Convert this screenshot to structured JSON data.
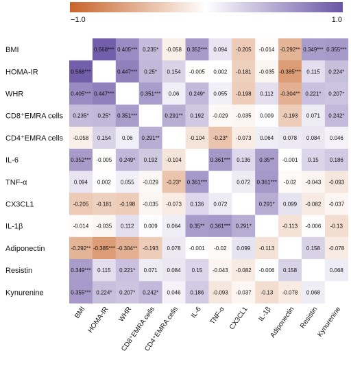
{
  "chart_data": {
    "type": "heatmap",
    "variables": [
      "BMI",
      "HOMA-IR",
      "WHR",
      "CD8⁺EMRA cells",
      "CD4⁺EMRA cells",
      "IL-6",
      "TNF-α",
      "CX3CL1",
      "IL-1β",
      "Adiponectin",
      "Resistin",
      "Kynurenine"
    ],
    "column_labels": [
      "BMI",
      "HOMA-IR",
      "WHR",
      "CD8⁺EMRA cells",
      "CD4⁺EMRA cells",
      "IL-6",
      "TNF-α",
      "CX3CL1",
      "IL-1β",
      "Adiponectin",
      "Resistin",
      "Kynurenine"
    ],
    "values": [
      [
        null,
        0.568,
        0.405,
        0.235,
        -0.058,
        0.352,
        0.094,
        -0.205,
        -0.014,
        -0.292,
        0.349,
        0.355
      ],
      [
        0.568,
        null,
        0.447,
        0.25,
        0.154,
        -0.005,
        0.002,
        -0.181,
        -0.035,
        -0.385,
        0.115,
        0.224
      ],
      [
        0.405,
        0.447,
        null,
        0.351,
        0.06,
        0.249,
        0.055,
        -0.198,
        0.112,
        -0.304,
        0.221,
        0.207
      ],
      [
        0.235,
        0.25,
        0.351,
        null,
        0.291,
        0.192,
        -0.029,
        -0.035,
        0.009,
        -0.193,
        0.071,
        0.242
      ],
      [
        -0.058,
        0.154,
        0.06,
        0.291,
        null,
        -0.104,
        -0.23,
        -0.073,
        0.064,
        0.078,
        0.084,
        0.046
      ],
      [
        0.352,
        -0.005,
        0.249,
        0.192,
        -0.104,
        null,
        0.361,
        0.136,
        0.35,
        -0.001,
        0.15,
        0.186
      ],
      [
        0.094,
        0.002,
        0.055,
        -0.029,
        -0.23,
        0.361,
        null,
        0.072,
        0.361,
        -0.02,
        -0.043,
        -0.093
      ],
      [
        -0.205,
        -0.181,
        -0.198,
        -0.035,
        -0.073,
        0.136,
        0.072,
        null,
        0.291,
        0.099,
        -0.082,
        -0.037
      ],
      [
        -0.014,
        -0.035,
        0.112,
        0.009,
        0.064,
        0.35,
        0.361,
        0.291,
        null,
        -0.113,
        -0.006,
        -0.13
      ],
      [
        -0.292,
        -0.385,
        -0.304,
        -0.193,
        0.078,
        -0.001,
        -0.02,
        0.099,
        -0.113,
        null,
        0.158,
        -0.078
      ],
      [
        0.349,
        0.115,
        0.221,
        0.071,
        0.084,
        0.15,
        -0.043,
        -0.082,
        -0.006,
        0.158,
        null,
        0.068
      ],
      [
        0.355,
        0.224,
        0.207,
        0.242,
        0.046,
        0.186,
        -0.093,
        -0.037,
        -0.13,
        -0.078,
        0.068,
        null
      ]
    ],
    "labels": [
      [
        "",
        "0.568***",
        "0.405***",
        "0.235*",
        "-0.058",
        "0.352***",
        "0.094",
        "-0.205",
        "-0.014",
        "-0.292**",
        "0.349***",
        "0.355***"
      ],
      [
        "0.568***",
        "",
        "0.447***",
        "0.25*",
        "0.154",
        "-0.005",
        "0.002",
        "-0.181",
        "-0.035",
        "-0.385***",
        "0.115",
        "0.224*"
      ],
      [
        "0.405***",
        "0.447***",
        "",
        "0.351***",
        "0.06",
        "0.249*",
        "0.055",
        "-0.198",
        "0.112",
        "-0.304**",
        "0.221*",
        "0.207*"
      ],
      [
        "0.235*",
        "0.25*",
        "0.351***",
        "",
        "0.291**",
        "0.192",
        "-0.029",
        "-0.035",
        "0.009",
        "-0.193",
        "0.071",
        "0.242*"
      ],
      [
        "-0.058",
        "0.154",
        "0.06",
        "0.291**",
        "",
        "-0.104",
        "-0.23*",
        "-0.073",
        "0.064",
        "0.078",
        "0.084",
        "0.046"
      ],
      [
        "0.352***",
        "-0.005",
        "0.249*",
        "0.192",
        "-0.104",
        "",
        "0.361***",
        "0.136",
        "0.35**",
        "-0.001",
        "0.15",
        "0.186"
      ],
      [
        "0.094",
        "0.002",
        "0.055",
        "-0.029",
        "-0.23*",
        "0.361***",
        "",
        "0.072",
        "0.361***",
        "-0.02",
        "-0.043",
        "-0.093"
      ],
      [
        "-0.205",
        "-0.181",
        "-0.198",
        "-0.035",
        "-0.073",
        "0.136",
        "0.072",
        "",
        "0.291*",
        "0.099",
        "-0.082",
        "-0.037"
      ],
      [
        "-0.014",
        "-0.035",
        "0.112",
        "0.009",
        "0.064",
        "0.35**",
        "0.361***",
        "0.291*",
        "",
        "-0.113",
        "-0.006",
        "-0.13"
      ],
      [
        "-0.292**",
        "-0.385***",
        "-0.304**",
        "-0.193",
        "0.078",
        "-0.001",
        "-0.02",
        "0.099",
        "-0.113",
        "",
        "0.158",
        "-0.078"
      ],
      [
        "0.349***",
        "0.115",
        "0.221*",
        "0.071",
        "0.084",
        "0.15",
        "-0.043",
        "-0.082",
        "-0.006",
        "0.158",
        "",
        "0.068"
      ],
      [
        "0.355***",
        "0.224*",
        "0.207*",
        "0.242*",
        "0.046",
        "0.186",
        "-0.093",
        "-0.037",
        "-0.13",
        "-0.078",
        "0.068",
        ""
      ]
    ],
    "colorbar": {
      "min": -1.0,
      "max": 1.0,
      "min_label": "−1.0",
      "max_label": "1.0"
    },
    "colors": {
      "negative": "#c8642a",
      "neutral": "#ffffff",
      "positive": "#6a55a5"
    },
    "color_saturation": 0.6
  }
}
